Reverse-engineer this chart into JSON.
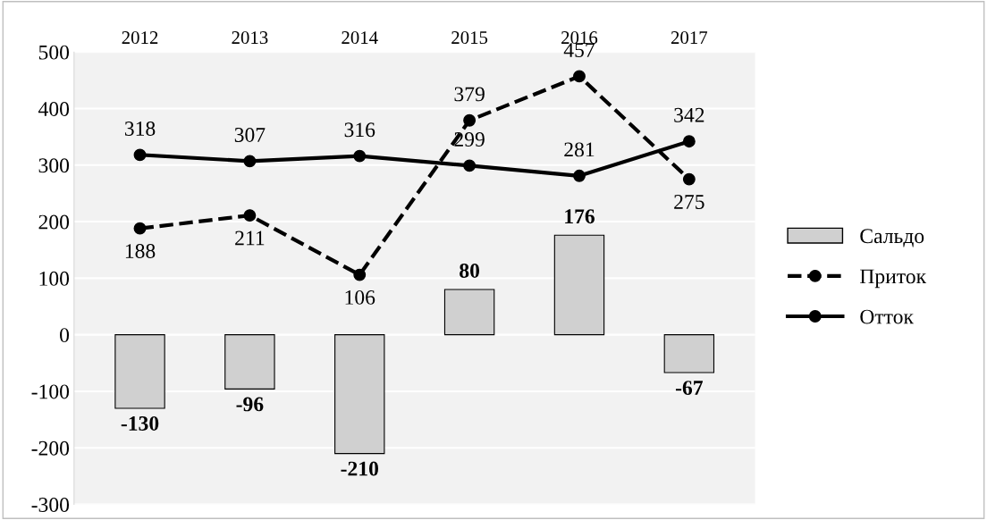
{
  "chart_data": {
    "type": "bar",
    "categories": [
      "2012",
      "2013",
      "2014",
      "2015",
      "2016",
      "2017"
    ],
    "series": [
      {
        "name": "Сальдо",
        "color": "#d0d0d0",
        "values": [
          -130,
          -96,
          -210,
          80,
          176,
          -67
        ]
      },
      {
        "name": "Приток",
        "type": "line",
        "color": "#000000",
        "line_style": "dashed",
        "values": [
          188,
          211,
          106,
          379,
          457,
          275
        ]
      },
      {
        "name": "Отток",
        "type": "line",
        "color": "#000000",
        "line_style": "solid",
        "values": [
          318,
          307,
          316,
          299,
          281,
          342
        ]
      }
    ],
    "ylim": [
      -300,
      500
    ],
    "yticks": [
      -300,
      -200,
      -100,
      0,
      100,
      200,
      300,
      400,
      500
    ],
    "grid": "y",
    "legend": "right",
    "marker": "circle",
    "data_labels": true
  }
}
